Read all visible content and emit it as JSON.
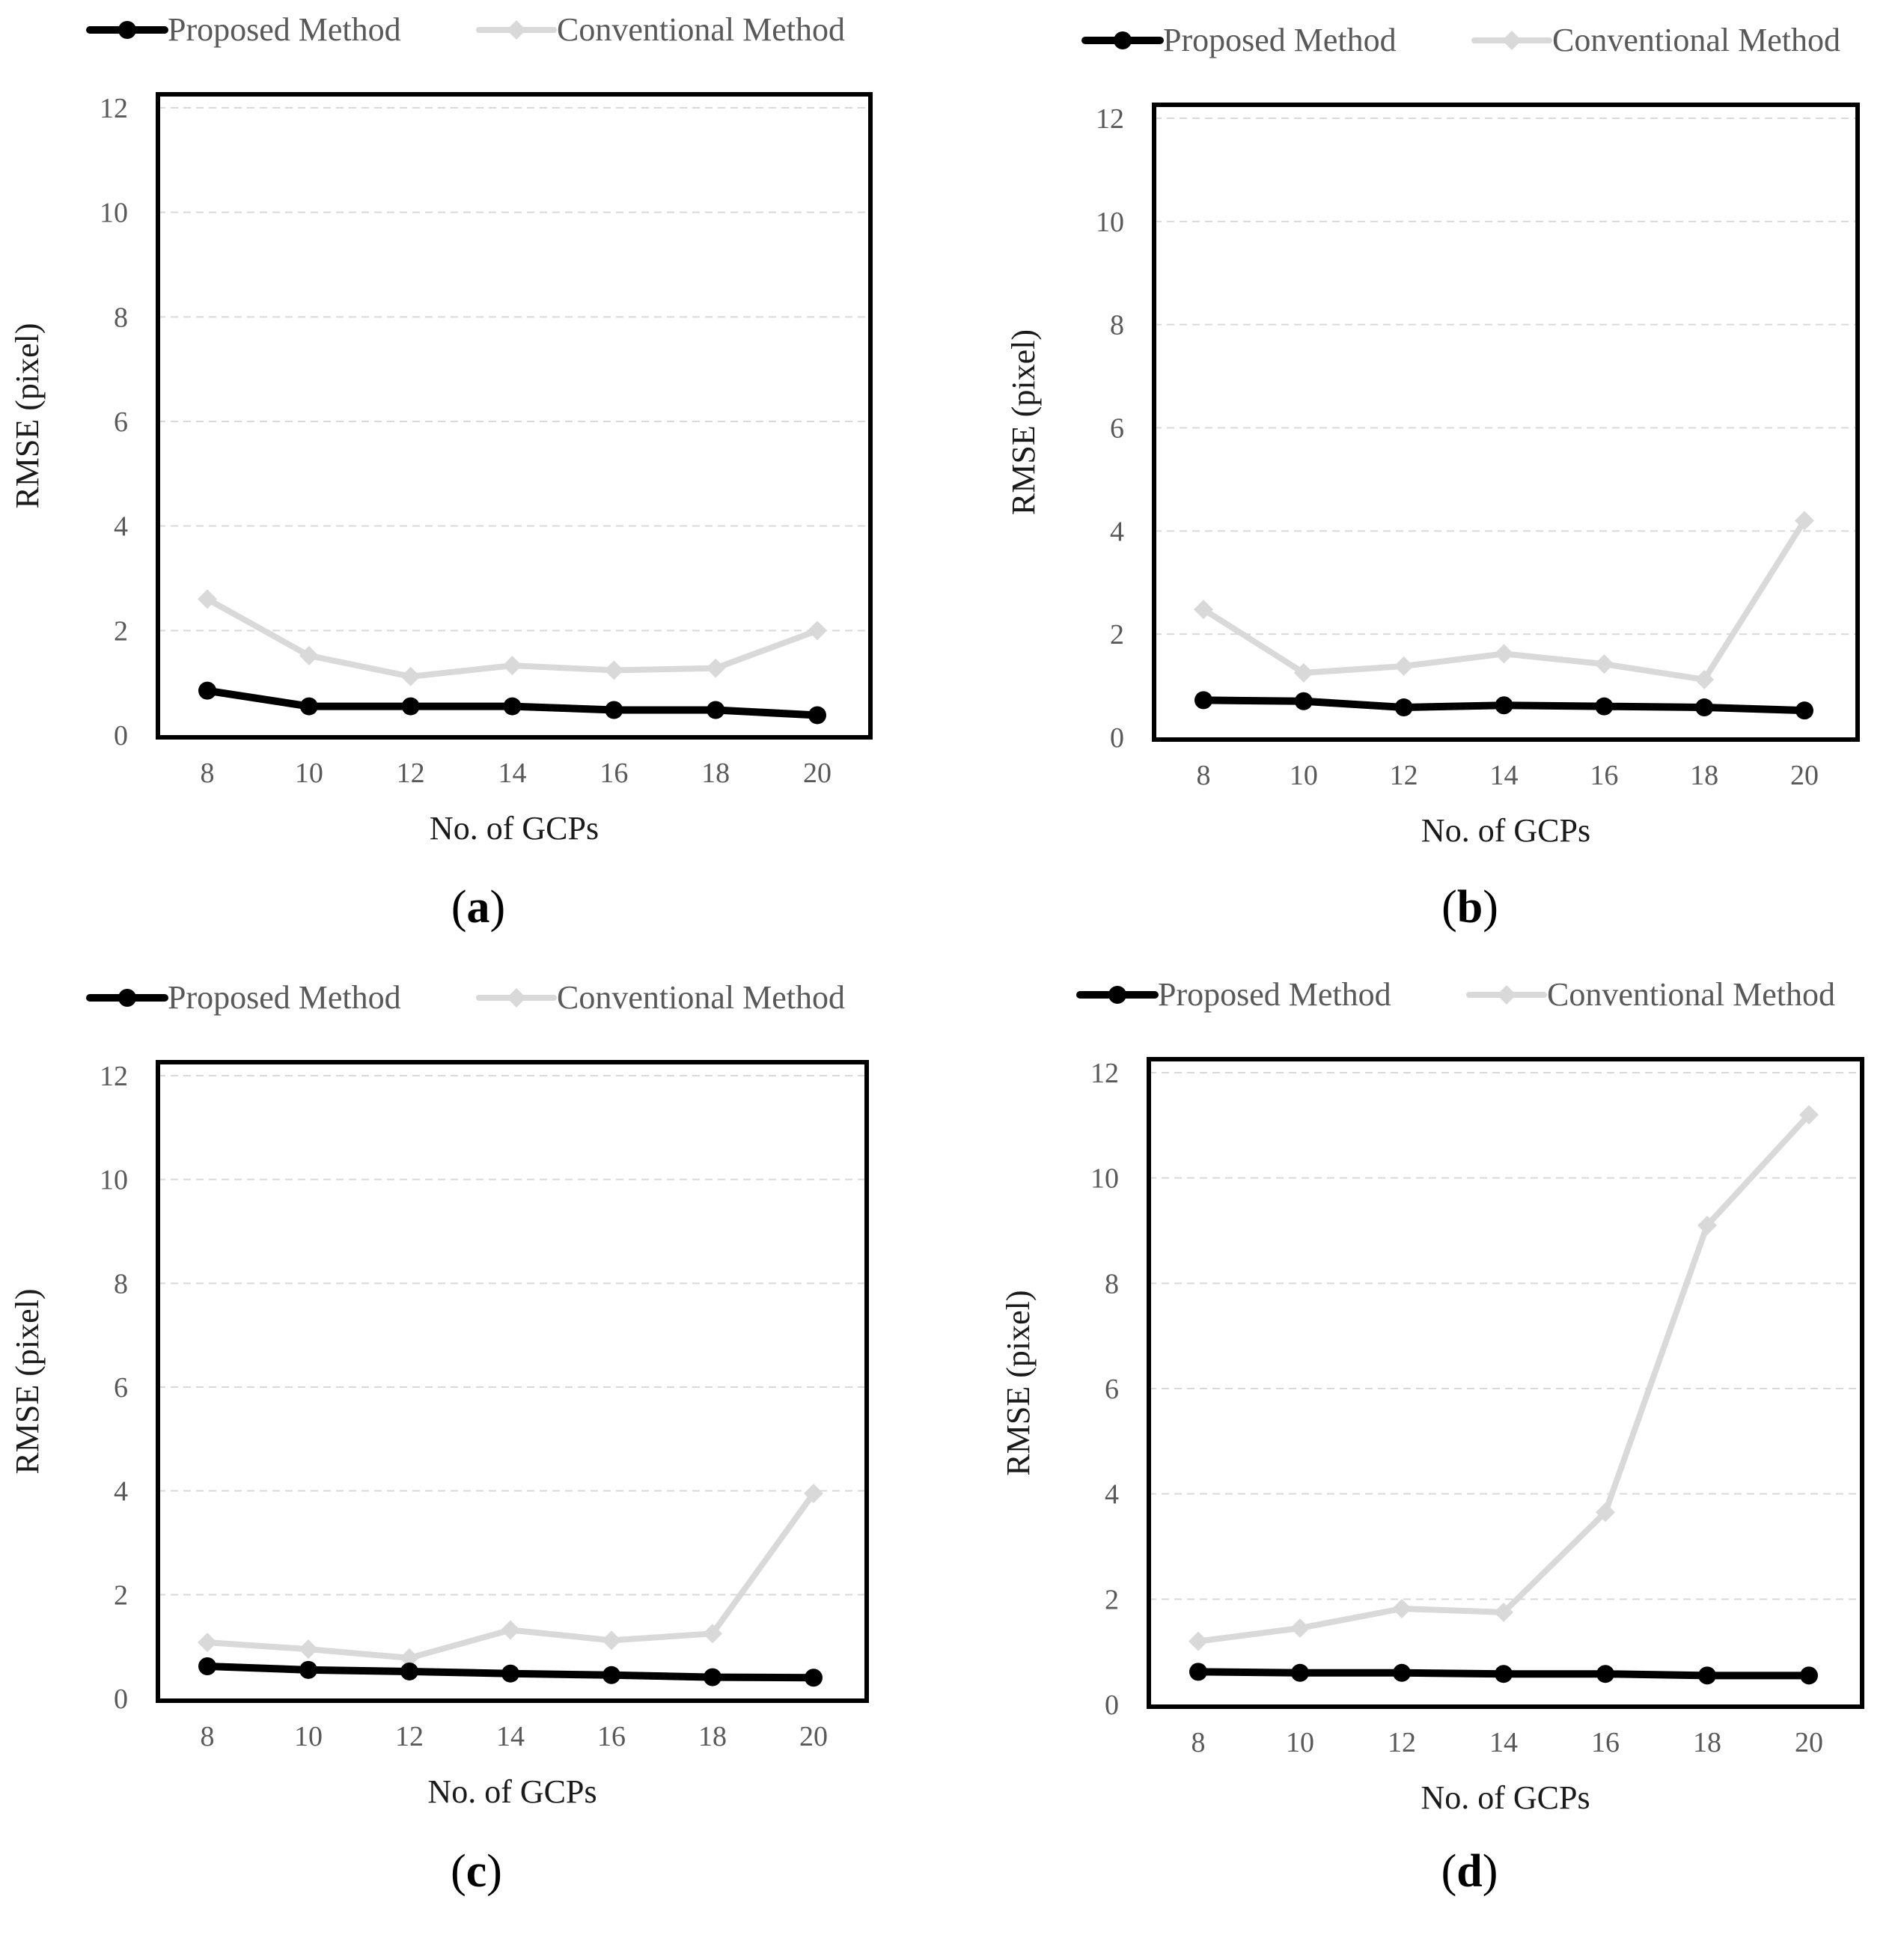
{
  "colors": {
    "proposed": "#000000",
    "conventional": "#d9d9d9",
    "grid": "#d9d9d9",
    "frame": "#000000",
    "tick_text": "#595959"
  },
  "legend": {
    "proposed": "Proposed Method",
    "conventional": "Conventional Method"
  },
  "chart_data": [
    {
      "panel": "(a)",
      "type": "line",
      "xlabel": "No. of GCPs",
      "ylabel": "RMSE (pixel)",
      "x": [
        8,
        10,
        12,
        14,
        16,
        18,
        20
      ],
      "xticks": [
        "8",
        "10",
        "12",
        "14",
        "16",
        "18",
        "20"
      ],
      "yticks": [
        "0",
        "2",
        "4",
        "6",
        "8",
        "10",
        "12"
      ],
      "ylim": [
        0,
        12
      ],
      "grid": true,
      "legend_position": "top",
      "series": [
        {
          "name": "Proposed Method",
          "marker": "circle",
          "values": [
            0.85,
            0.55,
            0.55,
            0.55,
            0.48,
            0.48,
            0.38
          ]
        },
        {
          "name": "Conventional Method",
          "marker": "diamond",
          "values": [
            2.6,
            1.52,
            1.12,
            1.33,
            1.24,
            1.28,
            2.0
          ]
        }
      ]
    },
    {
      "panel": "(b)",
      "type": "line",
      "xlabel": "No. of GCPs",
      "ylabel": "RMSE (pixel)",
      "x": [
        8,
        10,
        12,
        14,
        16,
        18,
        20
      ],
      "xticks": [
        "8",
        "10",
        "12",
        "14",
        "16",
        "18",
        "20"
      ],
      "yticks": [
        "0",
        "2",
        "4",
        "6",
        "8",
        "10",
        "12"
      ],
      "ylim": [
        0,
        12
      ],
      "grid": true,
      "legend_position": "top",
      "series": [
        {
          "name": "Proposed Method",
          "marker": "circle",
          "values": [
            0.72,
            0.7,
            0.58,
            0.62,
            0.6,
            0.58,
            0.52
          ]
        },
        {
          "name": "Conventional Method",
          "marker": "diamond",
          "values": [
            2.48,
            1.25,
            1.38,
            1.62,
            1.42,
            1.12,
            4.2
          ]
        }
      ]
    },
    {
      "panel": "(c)",
      "type": "line",
      "xlabel": "No. of GCPs",
      "ylabel": "RMSE (pixel)",
      "x": [
        8,
        10,
        12,
        14,
        16,
        18,
        20
      ],
      "xticks": [
        "8",
        "10",
        "12",
        "14",
        "16",
        "18",
        "20"
      ],
      "yticks": [
        "0",
        "2",
        "4",
        "6",
        "8",
        "10",
        "12"
      ],
      "ylim": [
        0,
        12
      ],
      "grid": true,
      "legend_position": "top",
      "series": [
        {
          "name": "Proposed Method",
          "marker": "circle",
          "values": [
            0.62,
            0.55,
            0.52,
            0.48,
            0.45,
            0.41,
            0.4
          ]
        },
        {
          "name": "Conventional Method",
          "marker": "diamond",
          "values": [
            1.08,
            0.95,
            0.78,
            1.32,
            1.12,
            1.25,
            3.95
          ]
        }
      ]
    },
    {
      "panel": "(d)",
      "type": "line",
      "xlabel": "No. of GCPs",
      "ylabel": "RMSE (pixel)",
      "x": [
        8,
        10,
        12,
        14,
        16,
        18,
        20
      ],
      "xticks": [
        "8",
        "10",
        "12",
        "14",
        "16",
        "18",
        "20"
      ],
      "yticks": [
        "0",
        "2",
        "4",
        "6",
        "8",
        "10",
        "12"
      ],
      "ylim": [
        0,
        12
      ],
      "grid": true,
      "legend_position": "top",
      "series": [
        {
          "name": "Proposed Method",
          "marker": "circle",
          "values": [
            0.62,
            0.6,
            0.6,
            0.58,
            0.58,
            0.55,
            0.55
          ]
        },
        {
          "name": "Conventional Method",
          "marker": "diamond",
          "values": [
            1.2,
            1.45,
            1.82,
            1.75,
            3.65,
            9.1,
            11.2
          ]
        }
      ]
    }
  ]
}
